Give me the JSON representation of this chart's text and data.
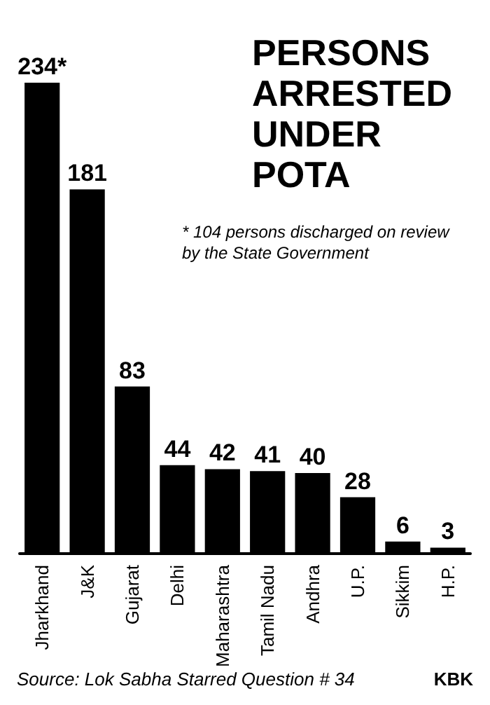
{
  "chart_data": {
    "type": "bar",
    "title": "PERSONS ARRESTED UNDER POTA",
    "categories": [
      "Jharkhand",
      "J&K",
      "Gujarat",
      "Delhi",
      "Maharashtra",
      "Tamil Nadu",
      "Andhra",
      "U.P.",
      "Sikkim",
      "H.P."
    ],
    "values": [
      234,
      181,
      83,
      44,
      42,
      41,
      40,
      28,
      6,
      3
    ],
    "value_labels": [
      "234*",
      "181",
      "83",
      "44",
      "42",
      "41",
      "40",
      "28",
      "6",
      "3"
    ],
    "color": "#000000",
    "annotations": [
      "* 104 persons discharged on review by the State Government",
      "Source: Lok Sabha Starred Question # 34",
      "KBK"
    ]
  }
}
